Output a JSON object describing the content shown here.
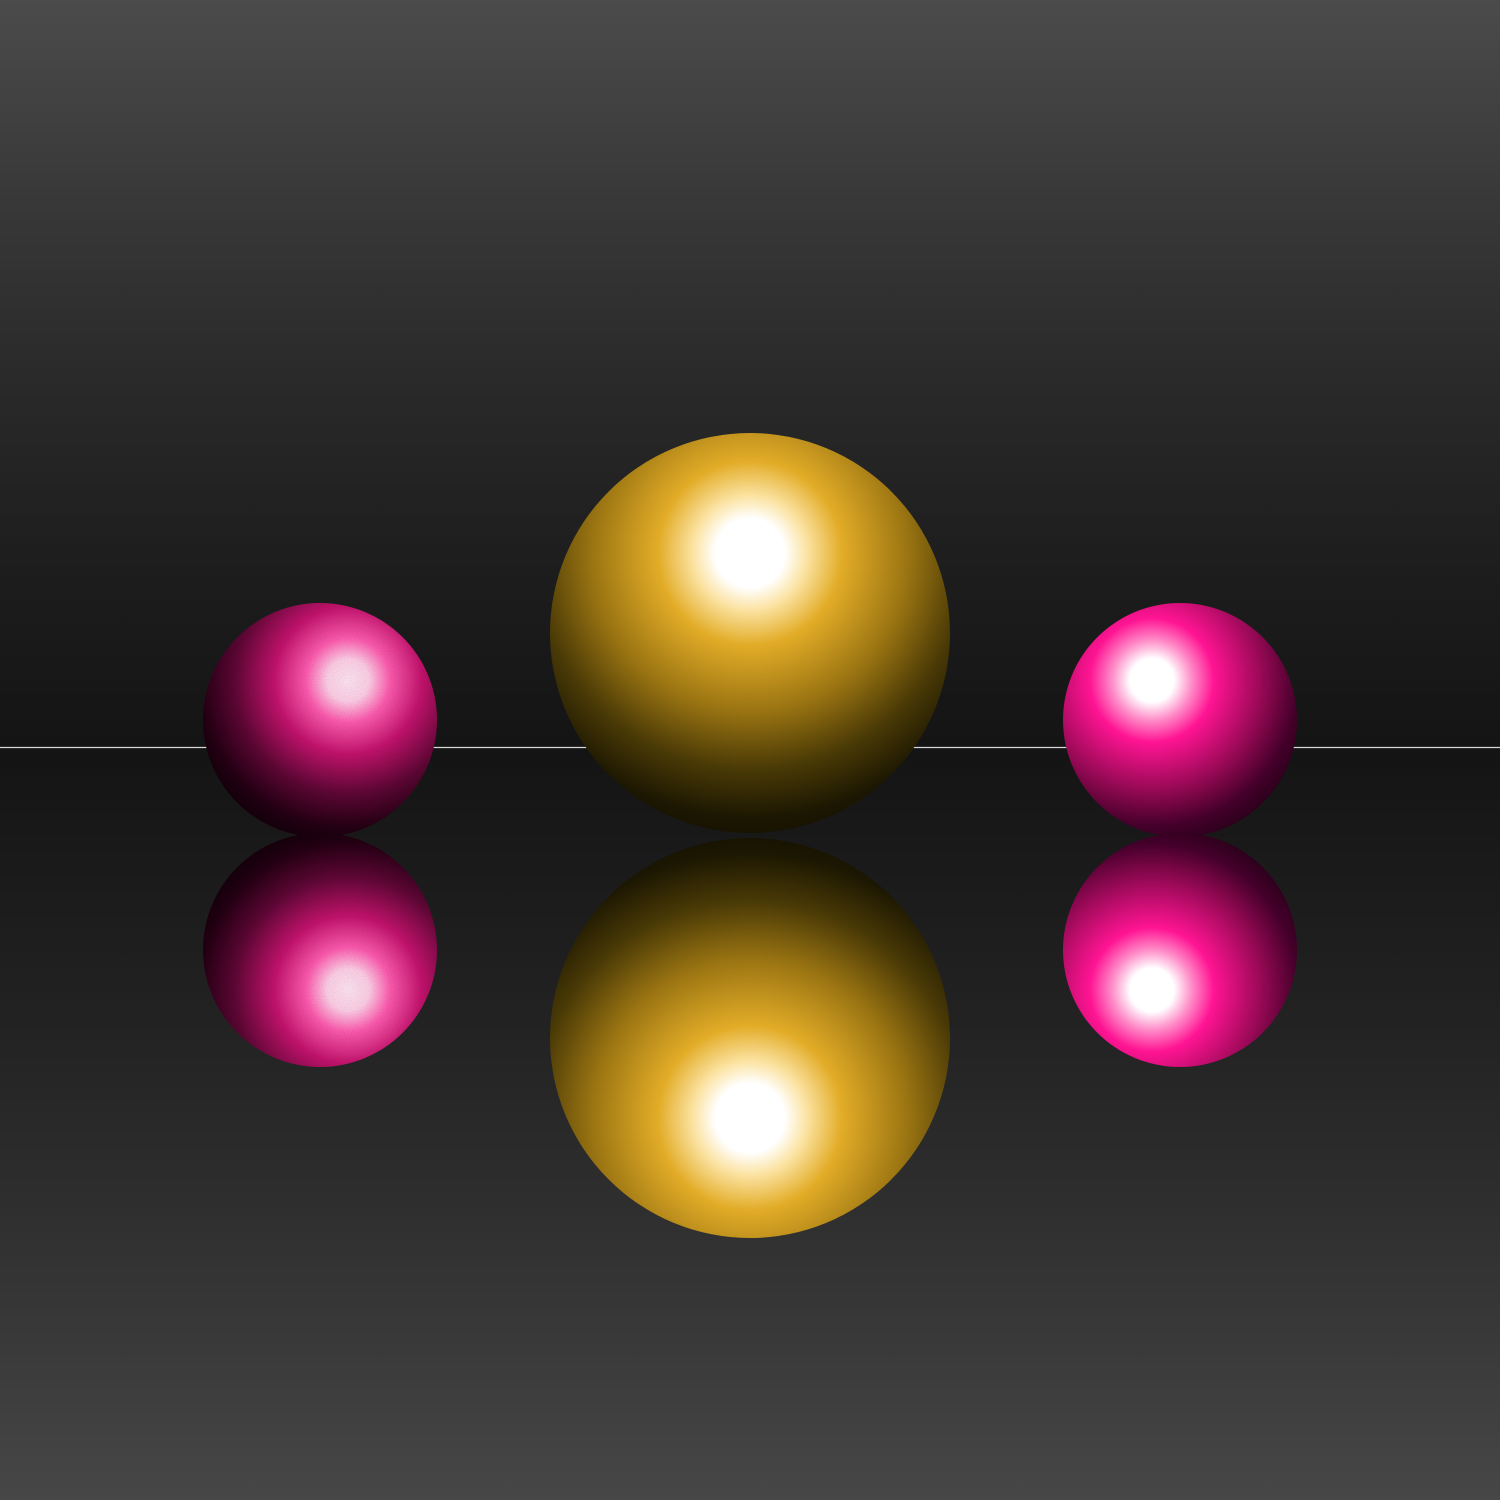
{
  "scene": {
    "description_colors": {
      "background_top": "#4b4b4b",
      "background_horizon": "#141414",
      "background_bottom": "#474747",
      "horizon_line": "#d8d8d8",
      "gold_base": "#e0a820",
      "gold_dark": "#1a1500",
      "magenta_base": "#ff1493",
      "magenta_dark": "#1a0010",
      "highlight": "#ffffff"
    },
    "objects": [
      {
        "id": "sphere-left",
        "color": "magenta",
        "texture": "grainy"
      },
      {
        "id": "sphere-center",
        "color": "gold",
        "texture": "smooth"
      },
      {
        "id": "sphere-right",
        "color": "magenta",
        "texture": "smooth"
      }
    ],
    "reflection": "mirror-floor"
  }
}
